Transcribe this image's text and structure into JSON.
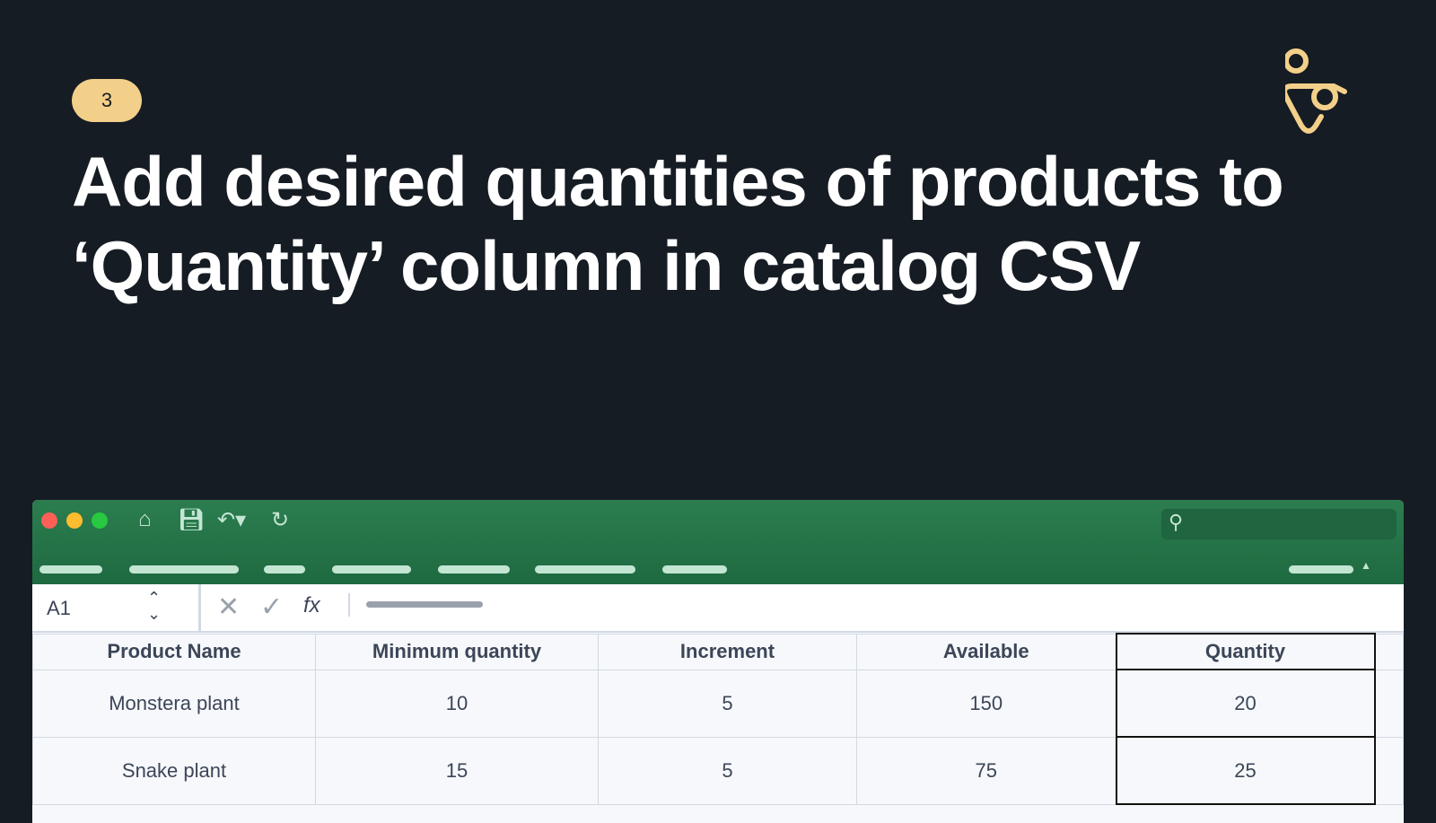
{
  "step_badge": "3",
  "title": "Add desired quantities of products to ‘Quantity’ column in catalog CSV",
  "colors": {
    "background": "#161c23",
    "accent": "#f3d08a",
    "ribbon": "#2b7d4f"
  },
  "spreadsheet": {
    "cell_ref": "A1",
    "formula_icon": "fx",
    "columns": [
      "Product Name",
      "Minimum quantity",
      "Increment",
      "Available",
      "Quantity"
    ],
    "rows": [
      [
        "Monstera plant",
        "10",
        "5",
        "150",
        "20"
      ],
      [
        "Snake plant",
        "15",
        "5",
        "75",
        "25"
      ]
    ]
  }
}
